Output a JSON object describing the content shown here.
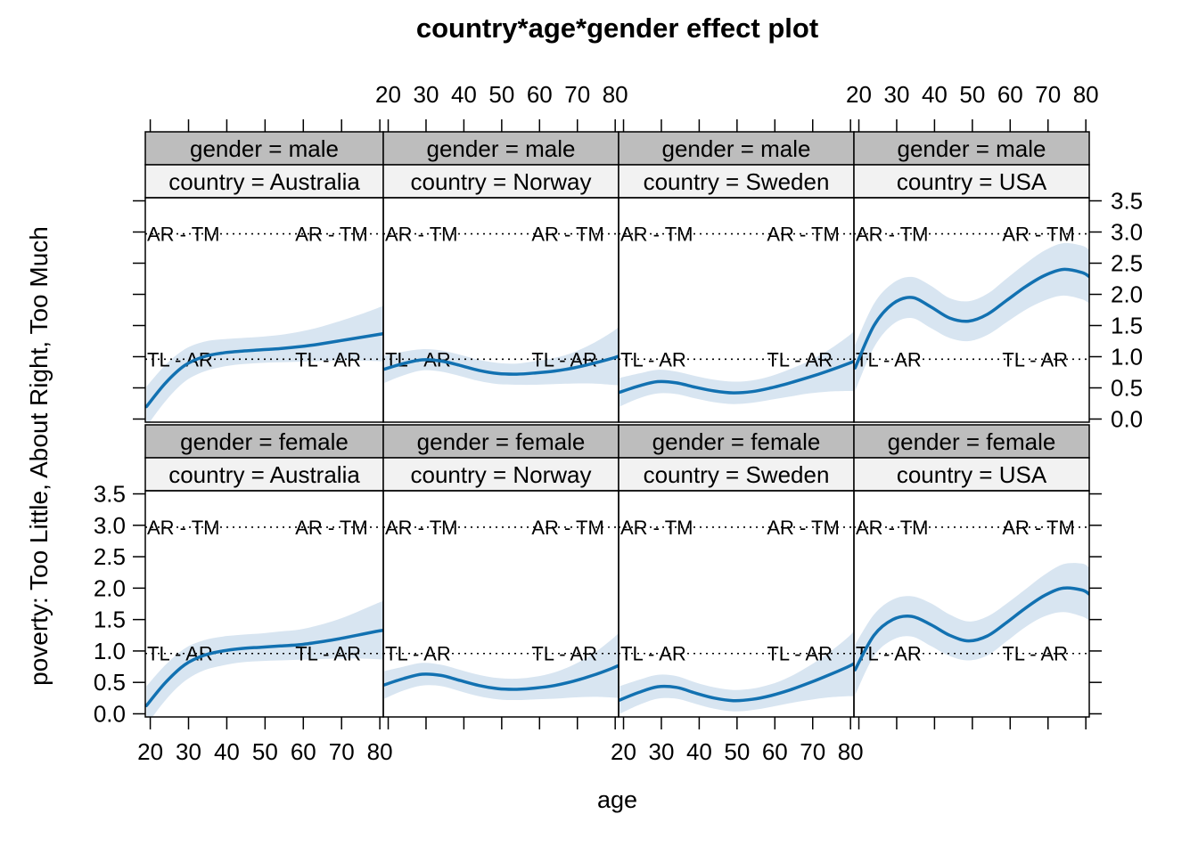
{
  "chart_data": {
    "type": "line-with-confidence-bands",
    "title": "country*age*gender effect plot",
    "xlabel": "age",
    "ylabel": "poverty: Too Little, About Right, Too Much",
    "facet_rows_variable": "gender",
    "facet_cols_variable": "country",
    "genders": [
      "male",
      "female"
    ],
    "countries": [
      "Australia",
      "Norway",
      "Sweden",
      "USA"
    ],
    "x_tick_labels": [
      "20",
      "30",
      "40",
      "50",
      "60",
      "70",
      "80"
    ],
    "x_tick_values": [
      20,
      30,
      40,
      50,
      60,
      70,
      80
    ],
    "y_tick_labels": [
      "0.0",
      "0.5",
      "1.0",
      "1.5",
      "2.0",
      "2.5",
      "3.0",
      "3.5"
    ],
    "y_tick_values": [
      0,
      0.5,
      1,
      1.5,
      2,
      2.5,
      3,
      3.5
    ],
    "xlim": [
      18.7,
      80.9
    ],
    "ylim": [
      -0.05,
      3.55
    ],
    "grid": false,
    "legend": false,
    "thresholds": [
      {
        "label": "TL - AR",
        "value": 0.96
      },
      {
        "label": "AR - TM",
        "value": 2.97
      }
    ],
    "ages": [
      19,
      24,
      29,
      34,
      39,
      44,
      49,
      54,
      59,
      64,
      69,
      74,
      79,
      81
    ],
    "panels": [
      {
        "gender_strip": "gender = male",
        "country_strip": "country = Australia",
        "fit": [
          0.2,
          0.58,
          0.86,
          1.0,
          1.06,
          1.09,
          1.11,
          1.13,
          1.16,
          1.2,
          1.25,
          1.3,
          1.35,
          1.37
        ],
        "lower": [
          -0.12,
          0.29,
          0.6,
          0.76,
          0.84,
          0.88,
          0.9,
          0.91,
          0.92,
          0.93,
          0.94,
          0.94,
          0.93,
          0.92
        ],
        "upper": [
          0.52,
          0.87,
          1.12,
          1.24,
          1.28,
          1.3,
          1.32,
          1.35,
          1.4,
          1.47,
          1.56,
          1.66,
          1.77,
          1.82
        ]
      },
      {
        "gender_strip": "gender = male",
        "country_strip": "country = Norway",
        "fit": [
          0.8,
          0.89,
          0.95,
          0.93,
          0.86,
          0.78,
          0.73,
          0.72,
          0.74,
          0.77,
          0.82,
          0.89,
          0.97,
          1.01
        ],
        "lower": [
          0.58,
          0.7,
          0.78,
          0.76,
          0.69,
          0.61,
          0.56,
          0.55,
          0.55,
          0.56,
          0.57,
          0.57,
          0.55,
          0.54
        ],
        "upper": [
          1.02,
          1.08,
          1.12,
          1.1,
          1.03,
          0.95,
          0.9,
          0.89,
          0.93,
          0.98,
          1.07,
          1.21,
          1.39,
          1.48
        ]
      },
      {
        "gender_strip": "gender = male",
        "country_strip": "country = Sweden",
        "fit": [
          0.43,
          0.53,
          0.6,
          0.58,
          0.51,
          0.45,
          0.42,
          0.44,
          0.5,
          0.58,
          0.67,
          0.77,
          0.88,
          0.93
        ],
        "lower": [
          0.2,
          0.33,
          0.41,
          0.4,
          0.33,
          0.27,
          0.24,
          0.26,
          0.31,
          0.36,
          0.41,
          0.44,
          0.45,
          0.45
        ],
        "upper": [
          0.66,
          0.73,
          0.79,
          0.76,
          0.69,
          0.63,
          0.6,
          0.62,
          0.69,
          0.8,
          0.93,
          1.1,
          1.31,
          1.41
        ]
      },
      {
        "gender_strip": "gender = male",
        "country_strip": "country = USA",
        "fit": [
          0.82,
          1.5,
          1.85,
          1.95,
          1.8,
          1.62,
          1.57,
          1.68,
          1.9,
          2.12,
          2.3,
          2.4,
          2.35,
          2.28
        ],
        "lower": [
          0.45,
          1.15,
          1.52,
          1.62,
          1.46,
          1.3,
          1.25,
          1.35,
          1.55,
          1.75,
          1.9,
          1.98,
          1.92,
          1.85
        ],
        "upper": [
          1.19,
          1.85,
          2.18,
          2.28,
          2.14,
          1.94,
          1.89,
          2.01,
          2.25,
          2.49,
          2.7,
          2.82,
          2.78,
          2.71
        ]
      },
      {
        "gender_strip": "gender = female",
        "country_strip": "country = Australia",
        "fit": [
          0.13,
          0.5,
          0.78,
          0.93,
          1.0,
          1.04,
          1.06,
          1.08,
          1.1,
          1.14,
          1.19,
          1.25,
          1.31,
          1.33
        ],
        "lower": [
          -0.18,
          0.22,
          0.52,
          0.69,
          0.77,
          0.82,
          0.84,
          0.85,
          0.86,
          0.87,
          0.88,
          0.88,
          0.87,
          0.86
        ],
        "upper": [
          0.44,
          0.78,
          1.04,
          1.17,
          1.23,
          1.26,
          1.28,
          1.31,
          1.34,
          1.41,
          1.5,
          1.62,
          1.75,
          1.8
        ]
      },
      {
        "gender_strip": "gender = female",
        "country_strip": "country = Norway",
        "fit": [
          0.46,
          0.56,
          0.63,
          0.61,
          0.53,
          0.45,
          0.4,
          0.39,
          0.41,
          0.45,
          0.52,
          0.61,
          0.72,
          0.77
        ],
        "lower": [
          0.24,
          0.37,
          0.45,
          0.44,
          0.36,
          0.28,
          0.23,
          0.22,
          0.23,
          0.24,
          0.26,
          0.27,
          0.26,
          0.25
        ],
        "upper": [
          0.68,
          0.75,
          0.81,
          0.78,
          0.7,
          0.62,
          0.57,
          0.56,
          0.59,
          0.66,
          0.78,
          0.95,
          1.18,
          1.29
        ]
      },
      {
        "gender_strip": "gender = female",
        "country_strip": "country = Sweden",
        "fit": [
          0.22,
          0.34,
          0.43,
          0.42,
          0.33,
          0.25,
          0.21,
          0.23,
          0.29,
          0.38,
          0.49,
          0.61,
          0.74,
          0.8
        ],
        "lower": [
          0.0,
          0.14,
          0.24,
          0.24,
          0.16,
          0.08,
          0.04,
          0.06,
          0.11,
          0.17,
          0.22,
          0.26,
          0.28,
          0.28
        ],
        "upper": [
          0.44,
          0.54,
          0.62,
          0.6,
          0.5,
          0.42,
          0.38,
          0.4,
          0.47,
          0.59,
          0.76,
          0.96,
          1.2,
          1.32
        ]
      },
      {
        "gender_strip": "gender = female",
        "country_strip": "country = USA",
        "fit": [
          0.7,
          1.25,
          1.5,
          1.55,
          1.42,
          1.25,
          1.16,
          1.24,
          1.45,
          1.68,
          1.88,
          2.0,
          1.97,
          1.9
        ],
        "lower": [
          0.3,
          0.92,
          1.18,
          1.23,
          1.08,
          0.92,
          0.85,
          0.93,
          1.15,
          1.38,
          1.55,
          1.62,
          1.55,
          1.48
        ],
        "upper": [
          1.1,
          1.58,
          1.82,
          1.87,
          1.76,
          1.58,
          1.47,
          1.55,
          1.75,
          1.98,
          2.21,
          2.38,
          2.39,
          2.32
        ]
      }
    ]
  },
  "colors": {
    "line": "#1271B1",
    "band": "#D8E5F1",
    "strip_gender_bg": "#BDBDBD",
    "strip_country_bg": "#F2F2F2",
    "border": "#000000",
    "background": "#FFFFFF"
  }
}
